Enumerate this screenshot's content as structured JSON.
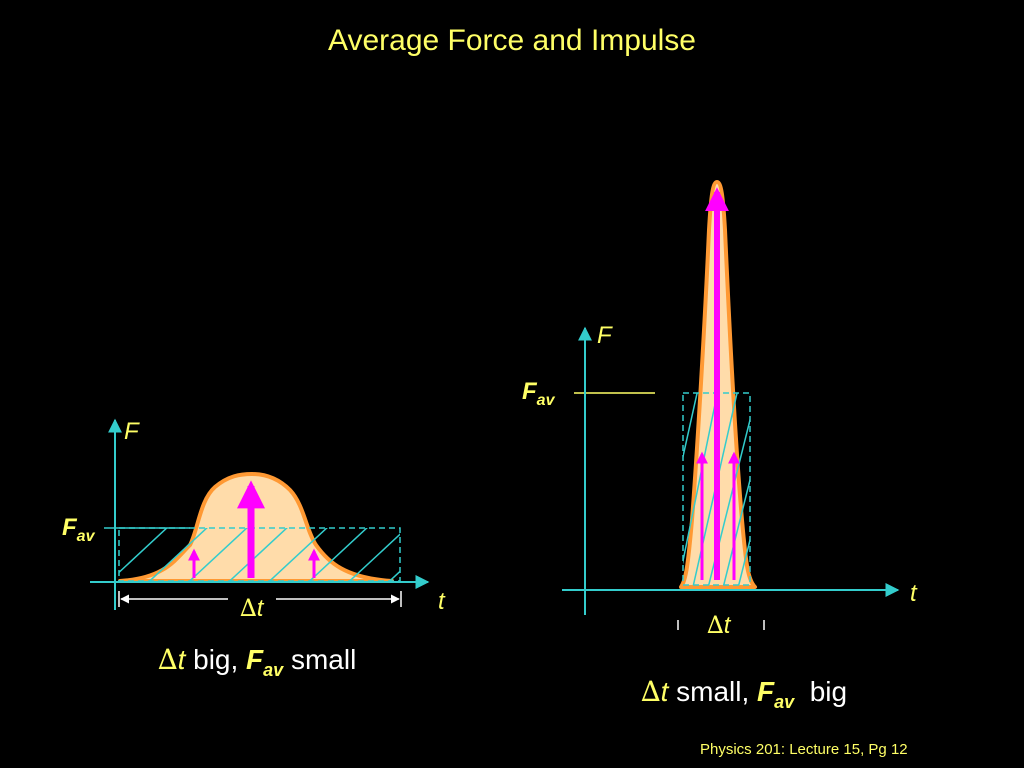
{
  "slide": {
    "title": "Average Force and Impulse",
    "footer": "Physics 201: Lecture 15, Pg 12"
  },
  "left_panel": {
    "y_axis_label": "F",
    "x_axis_label": "t",
    "fav_main": "F",
    "fav_sub": "av",
    "delta_symbol": "∆",
    "delta_var": "t",
    "caption": {
      "delta_symbol": "∆",
      "delta_var": "t",
      "text1": " big, ",
      "fav_main": "F",
      "fav_sub": "av",
      "text2": " small"
    }
  },
  "right_panel": {
    "y_axis_label": "F",
    "x_axis_label": "t",
    "fav_main": "F",
    "fav_sub": "av",
    "delta_symbol": "∆",
    "delta_var": "t",
    "caption": {
      "delta_symbol": "∆",
      "delta_var": "t",
      "text1": " small, ",
      "fav_main": "F",
      "fav_sub": "av",
      "text2": "  big"
    }
  },
  "colors": {
    "background": "#000000",
    "text_yellow": "#ffff66",
    "axis_cyan": "#33cccc",
    "curve_orange": "#ff9933",
    "fill_peach": "#ffdcaa",
    "arrow_magenta": "#ff00ff"
  }
}
